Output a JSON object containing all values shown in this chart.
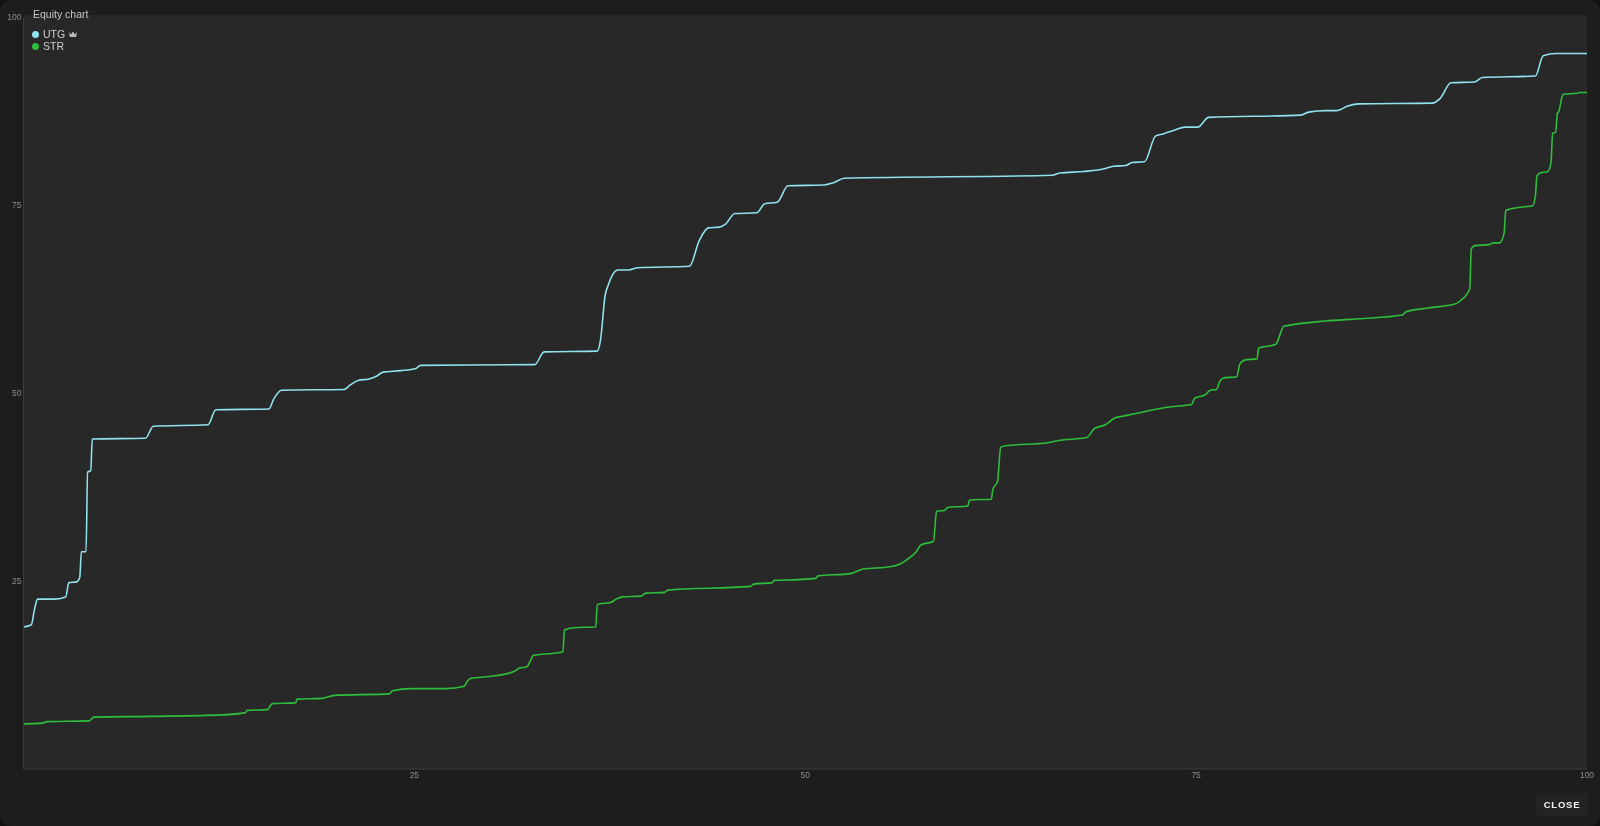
{
  "chart_data": {
    "type": "line",
    "title": "Equity chart",
    "annotations": [
      "CLOSE"
    ],
    "xlim": [
      0,
      100
    ],
    "ylim": [
      0,
      100
    ],
    "xticks": [
      25,
      50,
      75,
      100
    ],
    "yticks": [
      25,
      50,
      75,
      100
    ],
    "legend": "top left",
    "line_style": "solid",
    "series": [
      {
        "name": "UTG",
        "color": "#8fe2ee",
        "x": [
          0,
          0.5,
          0.7,
          0.9,
          1.9,
          2.7,
          2.9,
          3.4,
          3.6,
          3.7,
          4.0,
          4.1,
          4.3,
          4.4,
          7.8,
          8.3,
          11.8,
          12.3,
          15.7,
          16.0,
          16.5,
          20.5,
          20.9,
          21.4,
          22.1,
          22.6,
          23.0,
          24.1,
          25.1,
          25.4,
          32.7,
          33.3,
          36.7,
          36.9,
          37.2,
          37.4,
          38.0,
          38.7,
          39.3,
          42.6,
          43.2,
          43.8,
          44.5,
          44.9,
          45.5,
          46.9,
          47.4,
          48.2,
          48.9,
          51.2,
          51.8,
          52.5,
          65.8,
          66.3,
          67.8,
          69.2,
          69.7,
          70.5,
          70.9,
          71.7,
          72.4,
          72.9,
          73.6,
          74.3,
          75.1,
          75.8,
          81.7,
          82.2,
          83.3,
          84.0,
          84.7,
          85.4,
          90.1,
          90.6,
          91.3,
          92.8,
          93.3,
          96.7,
          97.2,
          98.0,
          100
        ],
        "values": [
          18.9,
          19.2,
          21.2,
          22.6,
          22.6,
          22.9,
          24.8,
          24.9,
          25.5,
          28.9,
          28.9,
          39.5,
          39.7,
          43.9,
          44.0,
          45.6,
          45.8,
          47.8,
          47.9,
          49.2,
          50.4,
          50.5,
          51.1,
          51.7,
          51.9,
          52.3,
          52.8,
          53.0,
          53.3,
          53.7,
          53.8,
          55.5,
          55.6,
          57.0,
          63.0,
          64.4,
          66.4,
          66.4,
          66.7,
          66.9,
          70.2,
          72.0,
          72.1,
          72.5,
          73.9,
          74.0,
          75.2,
          75.4,
          77.6,
          77.7,
          78.0,
          78.6,
          79.0,
          79.3,
          79.5,
          79.9,
          80.2,
          80.3,
          80.7,
          80.8,
          84.2,
          84.5,
          85.0,
          85.4,
          85.4,
          86.7,
          87.0,
          87.4,
          87.6,
          87.6,
          88.2,
          88.5,
          88.6,
          89.2,
          91.3,
          91.4,
          92.0,
          92.2,
          94.9,
          95.2,
          95.2
        ]
      },
      {
        "name": "STR",
        "color": "#2dbf3b",
        "x": [
          0,
          1.2,
          1.5,
          4.2,
          4.5,
          8.1,
          12.7,
          14.2,
          14.3,
          15.6,
          15.9,
          17.4,
          17.5,
          19.1,
          19.9,
          23.4,
          23.6,
          24.8,
          27.0,
          28.2,
          28.3,
          28.7,
          29.8,
          31.4,
          31.7,
          32.2,
          32.4,
          32.6,
          33.9,
          34.5,
          34.6,
          35.2,
          36.6,
          36.7,
          37.6,
          37.9,
          38.3,
          39.5,
          39.8,
          41.0,
          41.2,
          46.5,
          46.7,
          47.9,
          48.0,
          49.6,
          50.7,
          50.8,
          52.9,
          53.7,
          55.4,
          56.1,
          56.6,
          57.1,
          57.4,
          58.2,
          58.4,
          58.9,
          59.1,
          60.4,
          60.5,
          61.9,
          62.0,
          62.3,
          62.5,
          62.8,
          65.5,
          66.2,
          68.0,
          68.5,
          69.2,
          69.8,
          70.2,
          70.9,
          73.4,
          74.7,
          74.9,
          75.6,
          75.9,
          76.3,
          76.5,
          76.7,
          77.6,
          77.8,
          78.1,
          78.9,
          79.0,
          80.1,
          80.4,
          80.6,
          83.3,
          85.4,
          88.2,
          88.4,
          89.7,
          91.6,
          91.9,
          92.5,
          92.6,
          92.8,
          93.8,
          94.0,
          94.4,
          94.7,
          94.8,
          95.1,
          96.0,
          96.5,
          96.7,
          96.8,
          97.0,
          97.5,
          97.7,
          97.8,
          98.0,
          98.1,
          98.2,
          98.4,
          98.5,
          99.4,
          99.5,
          100
        ],
        "values": [
          6.0,
          6.1,
          6.3,
          6.4,
          6.9,
          7.0,
          7.2,
          7.5,
          7.8,
          7.9,
          8.7,
          8.8,
          9.3,
          9.4,
          9.8,
          10.0,
          10.4,
          10.7,
          10.7,
          11.0,
          11.4,
          12.1,
          12.3,
          13.0,
          13.4,
          13.6,
          14.3,
          15.1,
          15.4,
          15.6,
          18.5,
          18.8,
          18.9,
          21.9,
          22.2,
          22.6,
          22.9,
          23.0,
          23.4,
          23.5,
          23.8,
          24.3,
          24.6,
          24.8,
          25.1,
          25.2,
          25.4,
          25.7,
          26.0,
          26.6,
          26.9,
          27.3,
          28.0,
          28.9,
          29.8,
          30.3,
          34.3,
          34.4,
          34.8,
          35.0,
          35.8,
          35.9,
          37.2,
          38.3,
          42.8,
          43.0,
          43.4,
          43.7,
          44.1,
          45.3,
          45.8,
          46.7,
          46.9,
          47.2,
          48.2,
          48.5,
          49.3,
          49.8,
          50.4,
          50.5,
          51.5,
          52.0,
          52.2,
          53.9,
          54.4,
          54.6,
          56.0,
          56.5,
          58.0,
          58.9,
          59.6,
          59.9,
          60.4,
          60.8,
          61.3,
          61.9,
          62.3,
          63.9,
          69.2,
          69.6,
          69.8,
          70.0,
          70.0,
          71.3,
          74.3,
          74.5,
          74.8,
          74.9,
          76.3,
          78.9,
          79.3,
          79.5,
          80.7,
          84.6,
          84.7,
          87.2,
          87.5,
          89.4,
          89.8,
          89.9,
          90.0,
          90.0
        ]
      }
    ]
  }
}
